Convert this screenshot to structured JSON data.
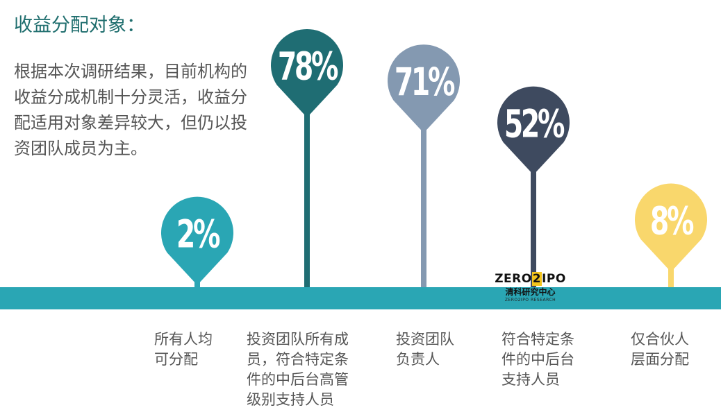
{
  "title": "收益分配对象：",
  "description": "根据本次调研结果，目前机构的收益分成机制十分灵活，收益分配适用对象差异较大，但仍以投资团队成员为主。",
  "logo": {
    "main_left": "ZERO",
    "main_mid": "2",
    "main_right": "IPO",
    "sub": "清科研究中心",
    "tiny": "ZERO2IPO RESEARCH"
  },
  "colors": {
    "baseline": "#2aa6b4",
    "title": "#1f6e6e",
    "text": "#555555"
  },
  "chart_data": {
    "type": "bar",
    "unit": "%",
    "categories": [
      "所有人均可分配",
      "投资团队所有成员，符合特定条件的中后台高管级别支持人员",
      "投资团队负责人",
      "符合特定条件的中后台支持人员",
      "仅合伙人层面分配"
    ],
    "values": [
      2,
      78,
      71,
      52,
      8
    ],
    "labels": [
      "2%",
      "78%",
      "71%",
      "52%",
      "8%"
    ],
    "label_lines": [
      [
        "所有人均",
        "可分配"
      ],
      [
        "投资团队所有成",
        "员，符合特定条",
        "件的中后台高管",
        "级别支持人员"
      ],
      [
        "投资团队",
        "负责人"
      ],
      [
        "符合特定条",
        "件的中后台",
        "支持人员"
      ],
      [
        "仅合伙人",
        "层面分配"
      ]
    ],
    "colors": [
      "#2aa6b4",
      "#1f6d73",
      "#8499b1",
      "#3e4a5f",
      "#f9d76c"
    ],
    "ylim": [
      0,
      100
    ]
  }
}
